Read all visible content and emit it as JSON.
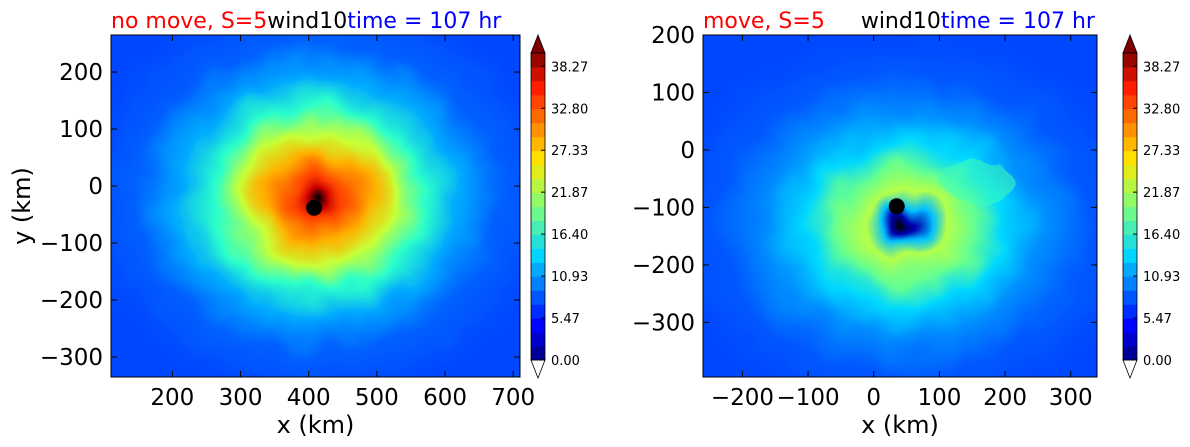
{
  "chart_data": [
    {
      "type": "heatmap",
      "title_parts": [
        {
          "text": "no move, S=5",
          "color": "#ff0000"
        },
        {
          "text": "wind10",
          "color": "#000000"
        },
        {
          "text": "time = 107 hr",
          "color": "#0000ff"
        }
      ],
      "xlabel": "x (km)",
      "ylabel": "y (km)",
      "xlim": [
        110,
        710
      ],
      "ylim": [
        -335,
        265
      ],
      "xticks": [
        200,
        300,
        400,
        500,
        600,
        700
      ],
      "yticks": [
        200,
        100,
        0,
        -100,
        -200,
        -300
      ],
      "center": {
        "x": 408,
        "y": -38
      },
      "colorbar": {
        "ticks": [
          "38.27",
          "32.80",
          "27.33",
          "21.87",
          "16.40",
          "10.93",
          "5.47",
          "0.00"
        ],
        "min": 0,
        "max": 40.0
      }
    },
    {
      "type": "heatmap",
      "title_parts": [
        {
          "text": "move, S=5",
          "color": "#ff0000"
        },
        {
          "text": "wind10",
          "color": "#000000"
        },
        {
          "text": "time = 107 hr",
          "color": "#0000ff"
        }
      ],
      "xlabel": "x (km)",
      "ylabel": "",
      "xlim": [
        -260,
        340
      ],
      "ylim": [
        -395,
        200
      ],
      "xticks": [
        -200,
        -100,
        0,
        100,
        200,
        300
      ],
      "yticks": [
        200,
        100,
        0,
        -100,
        -200,
        -300
      ],
      "center": {
        "x": 35,
        "y": -98
      },
      "colorbar": {
        "ticks": [
          "38.27",
          "32.80",
          "27.33",
          "21.87",
          "16.40",
          "10.93",
          "5.47",
          "0.00"
        ],
        "min": 0,
        "max": 40.0
      }
    }
  ]
}
